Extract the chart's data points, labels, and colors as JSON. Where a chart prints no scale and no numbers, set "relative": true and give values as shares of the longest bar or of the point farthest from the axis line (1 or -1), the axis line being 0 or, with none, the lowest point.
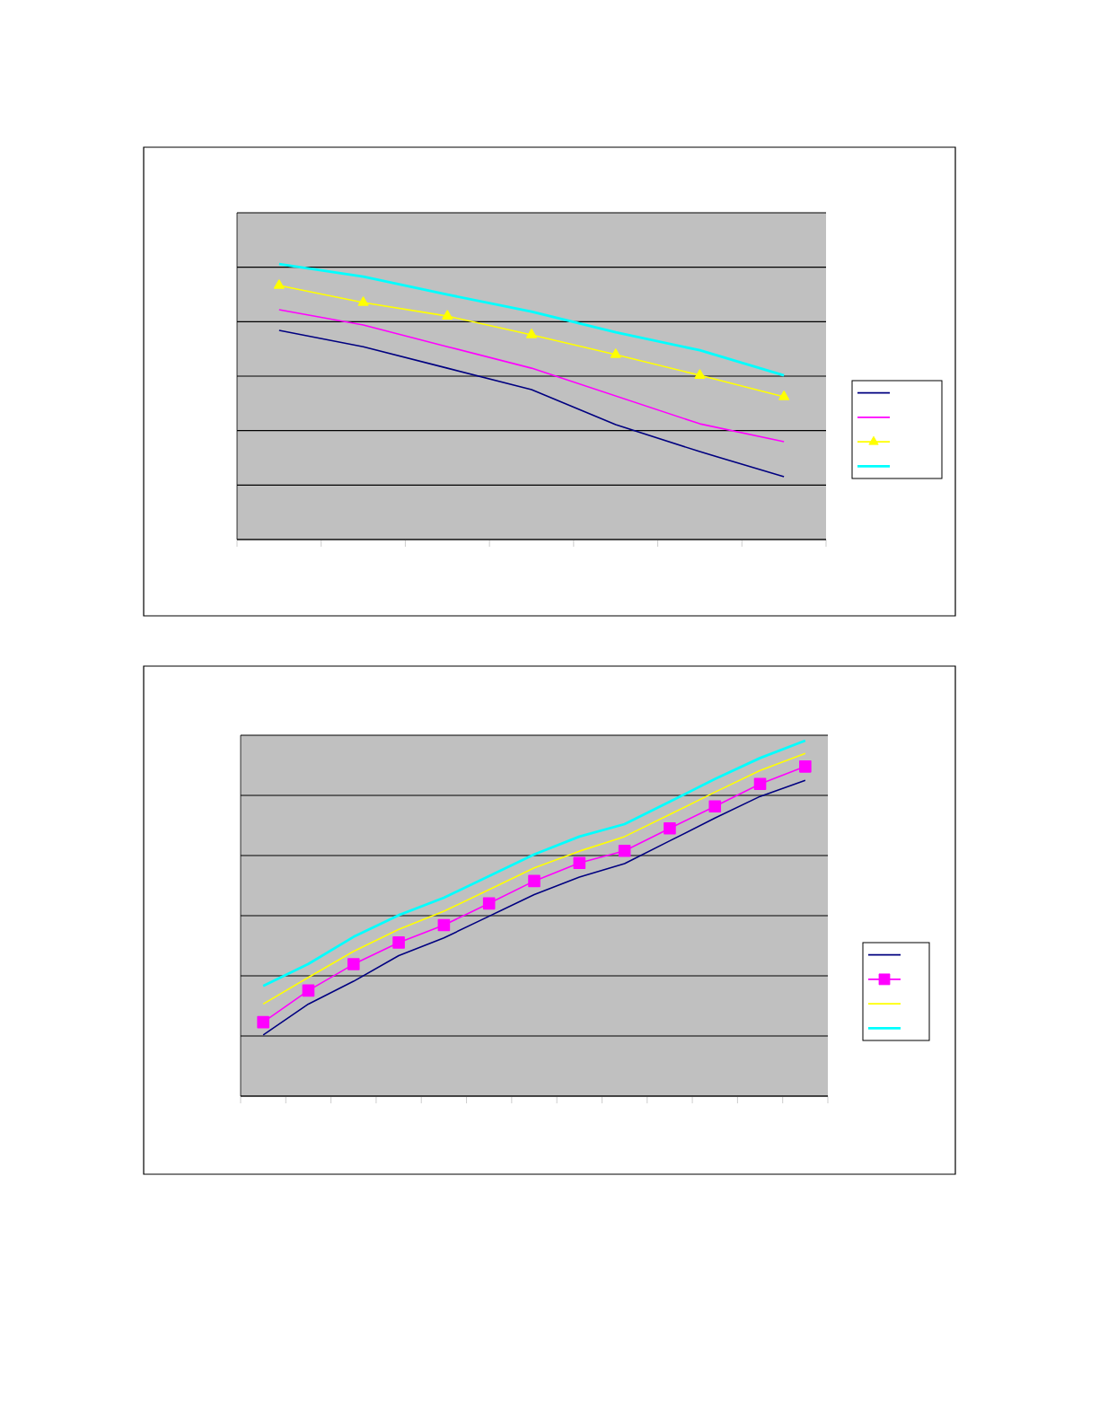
{
  "chart_data": [
    {
      "type": "line",
      "relative": true,
      "categories": [
        null,
        null,
        null,
        null,
        null,
        null,
        null
      ],
      "grid": "y",
      "tick_labels": false,
      "series": [
        {
          "color": "#000080",
          "values": [
            0.759,
            0.7,
            0.622,
            0.544,
            0.417,
            0.319,
            0.228
          ]
        },
        {
          "color": "#ff00ff",
          "values": [
            0.834,
            0.779,
            0.7,
            0.622,
            0.521,
            0.42,
            0.355
          ]
        },
        {
          "color": "#ffff00",
          "marker": "triangle",
          "values": [
            0.922,
            0.86,
            0.811,
            0.743,
            0.671,
            0.596,
            0.518
          ]
        },
        {
          "color": "#00ffff",
          "values": [
            1,
            0.954,
            0.889,
            0.827,
            0.752,
            0.687,
            0.596
          ]
        }
      ]
    },
    {
      "type": "line",
      "relative": true,
      "categories": [
        null,
        null,
        null,
        null,
        null,
        null,
        null,
        null,
        null,
        null,
        null,
        null,
        null
      ],
      "grid": "y",
      "tick_labels": false,
      "series": [
        {
          "color": "#000080",
          "values": [
            0.172,
            0.259,
            0.323,
            0.395,
            0.445,
            0.506,
            0.567,
            0.616,
            0.654,
            0.718,
            0.782,
            0.843,
            0.888
          ]
        },
        {
          "color": "#ff00ff",
          "marker": "square",
          "values": [
            0.208,
            0.297,
            0.371,
            0.432,
            0.481,
            0.542,
            0.605,
            0.656,
            0.69,
            0.753,
            0.815,
            0.878,
            0.927
          ]
        },
        {
          "color": "#ffff00",
          "values": [
            0.259,
            0.334,
            0.407,
            0.469,
            0.52,
            0.581,
            0.642,
            0.689,
            0.73,
            0.792,
            0.855,
            0.916,
            0.964
          ]
        },
        {
          "color": "#00ffff",
          "values": [
            0.31,
            0.372,
            0.448,
            0.509,
            0.558,
            0.619,
            0.68,
            0.73,
            0.765,
            0.828,
            0.892,
            0.951,
            1
          ]
        }
      ]
    }
  ]
}
